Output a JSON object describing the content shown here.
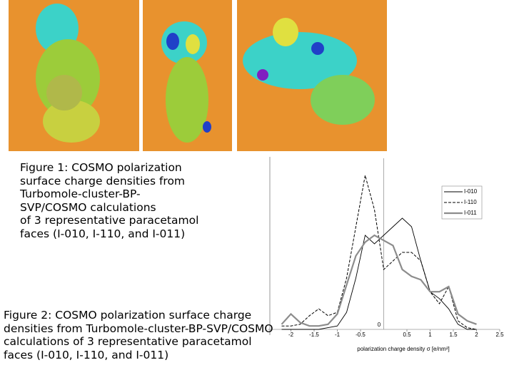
{
  "captions": {
    "figure1": [
      "Figure 1: COSMO polarization",
      "surface charge densities from",
      "Turbomole-cluster-BP-",
      "SVP/COSMO calculations",
      "of 3 representative paracetamol",
      "faces (I-010, I-110, and I-011)"
    ],
    "figure2": [
      "Figure 2: COSMO polarization surface charge",
      "densities from Turbomole-cluster-BP-SVP/COSMO",
      "calculations of 3 representative paracetamol",
      "faces (I-010, I-110, and I-011)"
    ]
  },
  "chart_data": {
    "type": "line",
    "x_label": "polarization charge density σ [e/nm²]",
    "y_zero_label": "0",
    "x": [
      -2.2,
      -2.0,
      -1.8,
      -1.6,
      -1.4,
      -1.2,
      -1.0,
      -0.8,
      -0.6,
      -0.4,
      -0.2,
      0,
      0.2,
      0.4,
      0.6,
      0.8,
      1.0,
      1.2,
      1.4,
      1.6,
      1.8,
      2.0
    ],
    "series": [
      {
        "name": "I-010",
        "color": "#000000",
        "style": "solid",
        "values": [
          0,
          0,
          0,
          0,
          0,
          1,
          2,
          10,
          30,
          55,
          50,
          55,
          60,
          65,
          60,
          40,
          22,
          18,
          12,
          3,
          0,
          0
        ]
      },
      {
        "name": "I-110",
        "color": "#000000",
        "style": "dashed",
        "values": [
          2,
          2,
          3,
          8,
          12,
          8,
          10,
          30,
          60,
          90,
          70,
          35,
          40,
          45,
          45,
          40,
          22,
          15,
          25,
          5,
          1,
          0
        ]
      },
      {
        "name": "I-011",
        "color": "#8c8c8c",
        "style": "thick",
        "values": [
          3,
          9,
          4,
          2,
          2,
          3,
          9,
          26,
          43,
          51,
          55,
          52,
          49,
          35,
          31,
          29,
          22,
          22,
          25,
          9,
          5,
          3
        ]
      }
    ],
    "xlim": [
      -2.5,
      2.5
    ],
    "ylim": [
      0,
      100
    ],
    "xticks": [
      -2,
      -1.5,
      -1,
      -0.5,
      0.5,
      1,
      1.5,
      2,
      2.5
    ]
  }
}
